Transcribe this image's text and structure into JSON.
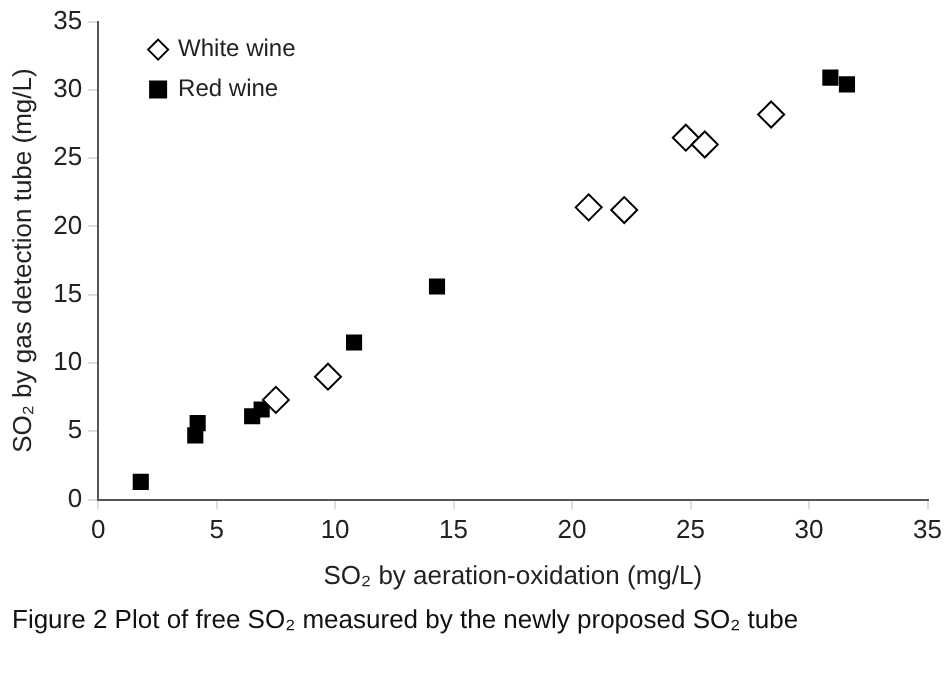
{
  "chart_data": {
    "type": "scatter",
    "xlabel": "SO₂ by aeration-oxidation (mg/L)",
    "ylabel": "SO₂ by gas detection tube (mg/L)",
    "xlim": [
      0,
      35
    ],
    "xticks": [
      0,
      5,
      10,
      15,
      20,
      25,
      30,
      35
    ],
    "ylim": [
      0,
      35
    ],
    "yticks": [
      0,
      5,
      10,
      15,
      20,
      25,
      30,
      35
    ],
    "grid": false,
    "legend": "top left",
    "annotations": [
      "Figure 2  Plot of free SO₂ measured by the newly proposed SO₂ tube"
    ],
    "series": [
      {
        "name": "White wine",
        "color": "#ffffff",
        "marker": "diamond",
        "x": [
          7.5,
          9.7,
          20.7,
          22.2,
          24.8,
          25.6,
          28.4
        ],
        "values": [
          7.3,
          9.0,
          21.4,
          21.2,
          26.5,
          26.0,
          28.2
        ]
      },
      {
        "name": "Red wine",
        "color": "#000000",
        "marker": "square",
        "x": [
          1.8,
          4.1,
          4.2,
          6.5,
          6.9,
          10.8,
          14.3,
          30.9,
          31.6
        ],
        "values": [
          1.3,
          4.7,
          5.6,
          6.1,
          6.6,
          11.5,
          15.6,
          30.9,
          30.4
        ]
      }
    ]
  }
}
